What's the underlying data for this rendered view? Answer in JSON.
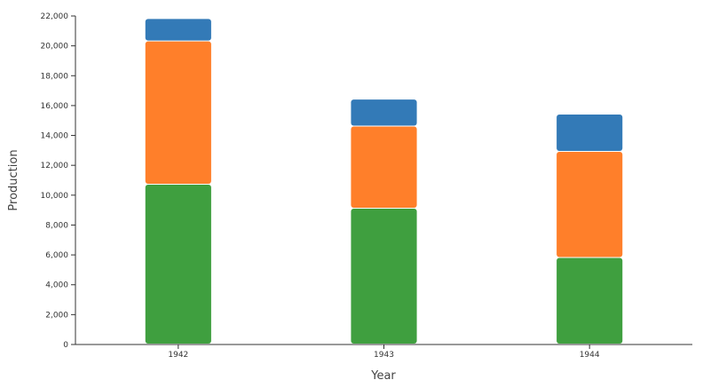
{
  "chart_data": {
    "type": "bar",
    "stacked": true,
    "categories": [
      "1942",
      "1943",
      "1944"
    ],
    "series": [
      {
        "values": [
          10700,
          9100,
          5800
        ],
        "color": "#3f9f3f"
      },
      {
        "values": [
          9600,
          5500,
          7100
        ],
        "color": "#ff7f2a"
      },
      {
        "values": [
          1500,
          1800,
          2500
        ],
        "color": "#337ab7"
      }
    ],
    "xlabel": "Year",
    "ylabel": "Production",
    "ylim": [
      0,
      22000
    ],
    "yticks": [
      "0",
      "2,000",
      "4,000",
      "6,000",
      "8,000",
      "10,000",
      "12,000",
      "14,000",
      "16,000",
      "18,000",
      "20,000",
      "22,000"
    ],
    "grid": false,
    "legend": "none"
  }
}
